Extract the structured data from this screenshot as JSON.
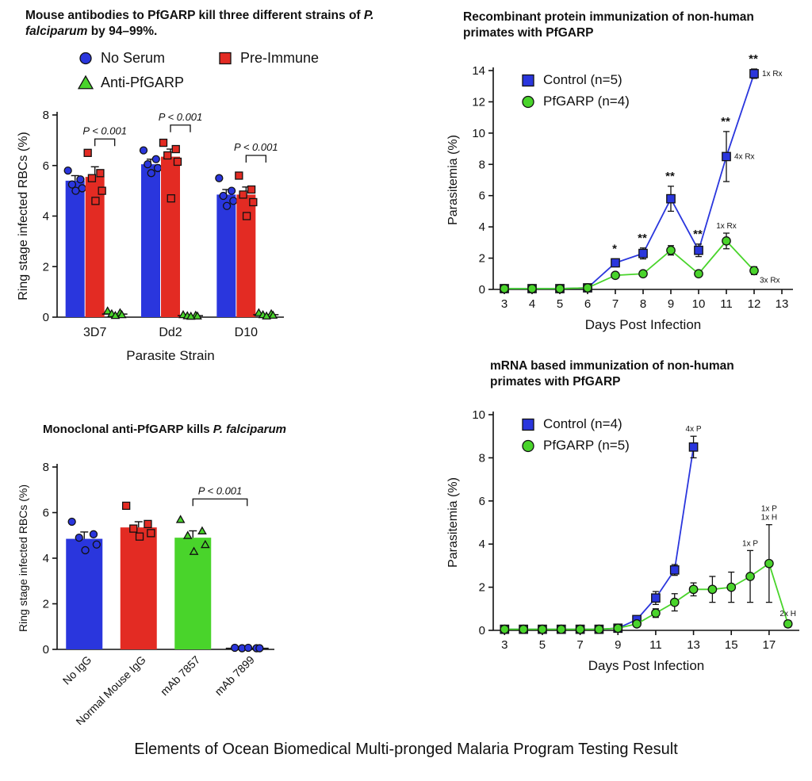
{
  "caption": "Elements of Ocean Biomedical Multi-pronged Malaria Program Testing Result",
  "chart_data": [
    {
      "id": "mouse-antibody-bar-chart",
      "type": "bar",
      "title_parts": [
        {
          "text": "Mouse antibodies to PfGARP kill three different strains of ",
          "italic": false
        },
        {
          "text": "P. falciparum",
          "italic": true
        },
        {
          "text": " by 94–99%.",
          "italic": false
        }
      ],
      "xlabel": "Parasite Strain",
      "ylabel": "Ring stage infected RBCs (%)",
      "ylim": [
        0,
        8
      ],
      "yticks": [
        0,
        2,
        4,
        6,
        8
      ],
      "categories": [
        "3D7",
        "Dd2",
        "D10"
      ],
      "series": [
        {
          "name": "No Serum",
          "marker": "circle",
          "color": "#2a36dd",
          "values": [
            5.4,
            6.05,
            4.85
          ],
          "errors": [
            0.2,
            0.2,
            0.2
          ],
          "points": [
            [
              5.8,
              5.45,
              5.25,
              5.1,
              5.0
            ],
            [
              6.6,
              6.25,
              6.05,
              5.9,
              5.7
            ],
            [
              5.5,
              5.0,
              4.8,
              4.6,
              4.4
            ]
          ]
        },
        {
          "name": "Pre-Immune",
          "marker": "square",
          "color": "#e32b23",
          "values": [
            5.55,
            6.35,
            4.85
          ],
          "errors": [
            0.4,
            0.3,
            0.3
          ],
          "points": [
            [
              6.5,
              5.7,
              5.5,
              5.0,
              4.6
            ],
            [
              6.9,
              6.65,
              6.4,
              6.15,
              4.7
            ],
            [
              5.6,
              5.05,
              4.85,
              4.55,
              4.0
            ]
          ]
        },
        {
          "name": "Anti-PfGARP",
          "marker": "triangle",
          "color": "#49d42b",
          "values": [
            0.12,
            0.06,
            0.1
          ],
          "errors": [
            0,
            0,
            0
          ],
          "points": [
            [
              0.25,
              0.18,
              0.14,
              0.1,
              0.07
            ],
            [
              0.1,
              0.08,
              0.06,
              0.05,
              0.04
            ],
            [
              0.18,
              0.14,
              0.1,
              0.08,
              0.05
            ]
          ]
        }
      ],
      "brackets": [
        {
          "category": 0,
          "from_series": 1,
          "to_series": 2,
          "y": 7.05,
          "label": "P < 0.001"
        },
        {
          "category": 1,
          "from_series": 1,
          "to_series": 2,
          "y": 7.6,
          "label": "P < 0.001"
        },
        {
          "category": 2,
          "from_series": 1,
          "to_series": 2,
          "y": 6.4,
          "label": "P < 0.001"
        }
      ]
    },
    {
      "id": "recombinant-protein-line-chart",
      "type": "line",
      "title": "Recombinant protein immunization of non-human primates with PfGARP",
      "xlabel": "Days Post Infection",
      "ylabel": "Parasitemia (%)",
      "xlim": [
        2.6,
        13.4
      ],
      "xticks": [
        3,
        4,
        5,
        6,
        7,
        8,
        9,
        10,
        11,
        12,
        13
      ],
      "ylim": [
        0,
        14
      ],
      "yticks": [
        0,
        2,
        4,
        6,
        8,
        10,
        12,
        14
      ],
      "series": [
        {
          "name": "Control (n=5)",
          "marker": "square",
          "color": "#2a36dd",
          "points": [
            {
              "x": 3,
              "y": 0.05
            },
            {
              "x": 4,
              "y": 0.05
            },
            {
              "x": 5,
              "y": 0.05
            },
            {
              "x": 6,
              "y": 0.1
            },
            {
              "x": 7,
              "y": 1.7,
              "err": 0.25,
              "sig": "*"
            },
            {
              "x": 8,
              "y": 2.3,
              "err": 0.35,
              "sig": "**"
            },
            {
              "x": 9,
              "y": 5.8,
              "err": 0.8,
              "sig": "**"
            },
            {
              "x": 10,
              "y": 2.5,
              "err": 0.4,
              "sig": "**"
            },
            {
              "x": 11,
              "y": 8.5,
              "err": 1.6,
              "sig": "**",
              "note": "4x Rx",
              "note_pos": "right"
            },
            {
              "x": 12,
              "y": 13.8,
              "err": 0.3,
              "sig": "**",
              "note": "1x Rx",
              "note_pos": "right"
            }
          ]
        },
        {
          "name": "PfGARP (n=4)",
          "marker": "circle",
          "color": "#49d42b",
          "points": [
            {
              "x": 3,
              "y": 0.05
            },
            {
              "x": 4,
              "y": 0.05
            },
            {
              "x": 5,
              "y": 0.05
            },
            {
              "x": 6,
              "y": 0.1
            },
            {
              "x": 7,
              "y": 0.9
            },
            {
              "x": 8,
              "y": 1.0
            },
            {
              "x": 9,
              "y": 2.5,
              "err": 0.3
            },
            {
              "x": 10,
              "y": 1.0
            },
            {
              "x": 11,
              "y": 3.1,
              "err": 0.5,
              "note": "1x Rx",
              "note_pos": "above"
            },
            {
              "x": 12,
              "y": 1.2,
              "err": 0.25,
              "note": "3x Rx",
              "note_pos": "below-right"
            }
          ]
        }
      ]
    },
    {
      "id": "monoclonal-bar-chart",
      "type": "bar",
      "title_parts": [
        {
          "text": "Monoclonal anti-PfGARP kills ",
          "italic": false
        },
        {
          "text": "P. falciparum",
          "italic": true
        }
      ],
      "xlabel": "",
      "ylabel": "Ring stage infected RBCs (%)",
      "ylim": [
        0,
        8
      ],
      "yticks": [
        0,
        2,
        4,
        6,
        8
      ],
      "bars": [
        {
          "label": "No IgG",
          "value": 4.85,
          "error": 0.3,
          "color": "#2a36dd",
          "marker": "circle",
          "points": [
            5.6,
            5.05,
            4.9,
            4.6,
            4.35
          ]
        },
        {
          "label": "Normal Mouse IgG",
          "value": 5.35,
          "error": 0.25,
          "color": "#e32b23",
          "marker": "square",
          "points": [
            6.3,
            5.5,
            5.3,
            5.1,
            4.95
          ]
        },
        {
          "label": "mAb 7857",
          "value": 4.9,
          "error": 0.3,
          "color": "#49d42b",
          "marker": "triangle",
          "points": [
            5.7,
            5.2,
            5.0,
            4.6,
            4.3
          ]
        },
        {
          "label": "mAb 7899",
          "value": 0.05,
          "error": 0,
          "color": "#2a36dd",
          "marker": "circle",
          "points": [
            0.07,
            0.05,
            0.05,
            0.05,
            0.07
          ]
        }
      ],
      "brackets": [
        {
          "from_bar": 2,
          "to_bar": 3,
          "y": 6.6,
          "label": "P < 0.001"
        }
      ]
    },
    {
      "id": "mrna-line-chart",
      "type": "line",
      "title": "mRNA based immunization of non-human primates with PfGARP",
      "xlabel": "Days Post Infection",
      "ylabel": "Parasitemia (%)",
      "xlim": [
        2.4,
        18.6
      ],
      "xticks": [
        3,
        5,
        7,
        9,
        11,
        13,
        15,
        17
      ],
      "ylim": [
        0,
        10
      ],
      "yticks": [
        0,
        2,
        4,
        6,
        8,
        10
      ],
      "series": [
        {
          "name": "Control (n=4)",
          "marker": "square",
          "color": "#2a36dd",
          "points": [
            {
              "x": 3,
              "y": 0.05
            },
            {
              "x": 4,
              "y": 0.05
            },
            {
              "x": 5,
              "y": 0.05
            },
            {
              "x": 6,
              "y": 0.05
            },
            {
              "x": 7,
              "y": 0.05
            },
            {
              "x": 8,
              "y": 0.05
            },
            {
              "x": 9,
              "y": 0.1
            },
            {
              "x": 10,
              "y": 0.5
            },
            {
              "x": 11,
              "y": 1.5,
              "err": 0.3
            },
            {
              "x": 12,
              "y": 2.8,
              "err": 0.25
            },
            {
              "x": 13,
              "y": 8.5,
              "err": 0.5,
              "note": "4x P",
              "note_pos": "above"
            }
          ]
        },
        {
          "name": "PfGARP (n=5)",
          "marker": "circle",
          "color": "#49d42b",
          "points": [
            {
              "x": 3,
              "y": 0.05
            },
            {
              "x": 4,
              "y": 0.05
            },
            {
              "x": 5,
              "y": 0.05
            },
            {
              "x": 6,
              "y": 0.05
            },
            {
              "x": 7,
              "y": 0.05
            },
            {
              "x": 8,
              "y": 0.05
            },
            {
              "x": 9,
              "y": 0.1
            },
            {
              "x": 10,
              "y": 0.3
            },
            {
              "x": 11,
              "y": 0.8,
              "err": 0.2
            },
            {
              "x": 12,
              "y": 1.3,
              "err": 0.4
            },
            {
              "x": 13,
              "y": 1.9,
              "err": 0.3
            },
            {
              "x": 14,
              "y": 1.9,
              "err": 0.6
            },
            {
              "x": 15,
              "y": 2.0,
              "err": 0.7
            },
            {
              "x": 16,
              "y": 2.5,
              "err": 1.2,
              "note": "1x P",
              "note_pos": "above"
            },
            {
              "x": 17,
              "y": 3.1,
              "err": 1.8,
              "note": "1x P\n1x H",
              "note_pos": "above"
            },
            {
              "x": 18,
              "y": 0.3,
              "err": 0.15,
              "note": "2x H",
              "note_pos": "above"
            }
          ]
        }
      ]
    }
  ]
}
